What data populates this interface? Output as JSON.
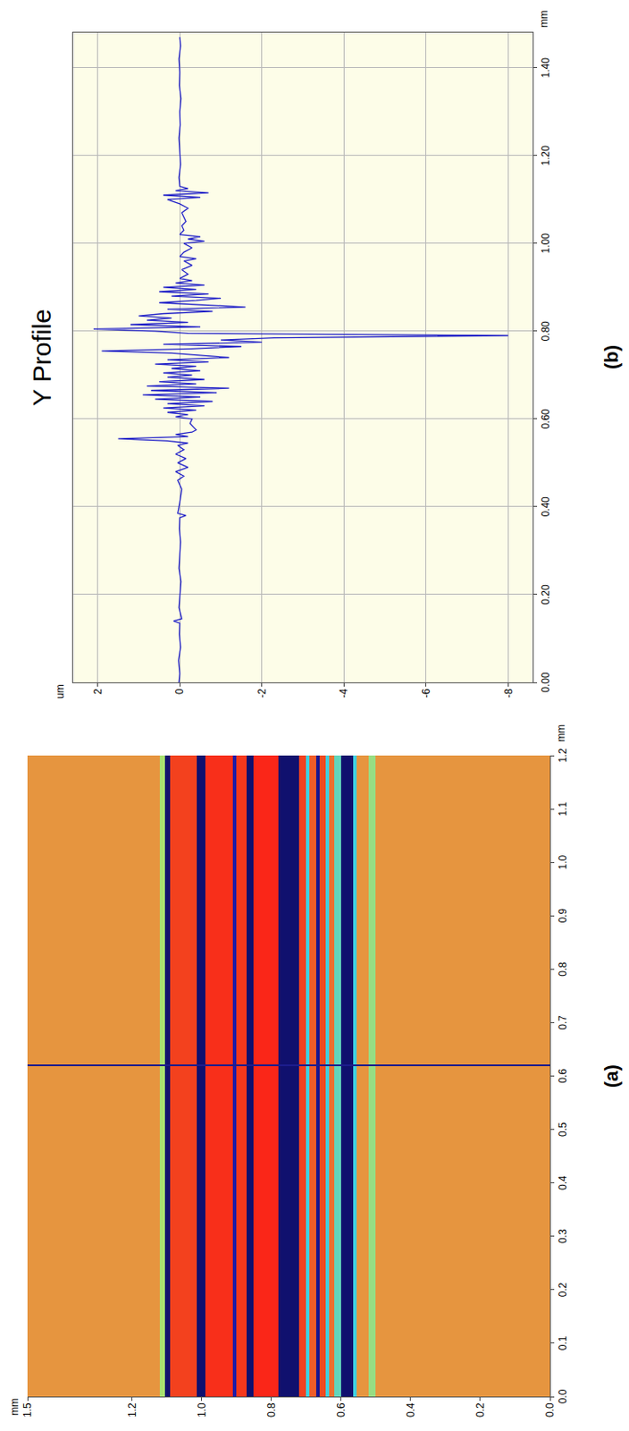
{
  "chart_data": [
    {
      "type": "heatmap",
      "label": "(a)",
      "xlabel": "mm",
      "ylabel": "mm",
      "x_edges": [
        0,
        1.2
      ],
      "y_edges": [
        0,
        0.5,
        0.52,
        0.555,
        0.565,
        0.6,
        0.62,
        0.635,
        0.645,
        0.66,
        0.67,
        0.69,
        0.7,
        0.72,
        0.78,
        0.85,
        0.87,
        0.9,
        0.91,
        0.99,
        1.015,
        1.09,
        1.105,
        1.12,
        1.5
      ],
      "z": [
        0,
        -0.35,
        0,
        -0.6,
        -1.5,
        -0.5,
        0.2,
        -0.6,
        0.4,
        -1.2,
        0.3,
        -0.6,
        0.5,
        -1.5,
        0.8,
        -1.5,
        0.6,
        -1.0,
        0.7,
        -1.5,
        0.5,
        -1.5,
        -0.3,
        0
      ],
      "zlim": [
        -1.5,
        1
      ],
      "cut_x": 0.62,
      "cut_color": "#1c1c8c",
      "xlim": [
        0,
        1.2
      ],
      "ylim": [
        0,
        1.5
      ],
      "xticks": [
        {
          "value": 0,
          "label": "0.0"
        },
        0.1,
        0.2,
        0.3,
        0.4,
        0.5,
        0.6,
        0.7,
        0.8,
        0.9,
        {
          "value": 1,
          "label": "1.0"
        },
        1.1,
        1.2
      ],
      "yticks": [
        {
          "value": 0,
          "label": "0.0"
        },
        0.2,
        0.4,
        0.6,
        0.8,
        {
          "value": 1,
          "label": "1.0"
        },
        1.2,
        1.5
      ],
      "grid": false
    },
    {
      "type": "line",
      "title": "Y Profile",
      "label": "(b)",
      "xlabel": "mm",
      "ylabel": "um",
      "color": "#2323c8",
      "x": [
        0,
        0.02,
        0.05,
        0.08,
        0.11,
        0.135,
        0.14,
        0.145,
        0.17,
        0.2,
        0.23,
        0.26,
        0.29,
        0.32,
        0.35,
        0.375,
        0.38,
        0.385,
        0.41,
        0.44,
        0.46,
        0.47,
        0.48,
        0.49,
        0.5,
        0.51,
        0.52,
        0.53,
        0.54,
        0.545,
        0.55,
        0.555,
        0.56,
        0.565,
        0.57,
        0.575,
        0.58,
        0.59,
        0.6,
        0.605,
        0.61,
        0.615,
        0.62,
        0.625,
        0.63,
        0.635,
        0.64,
        0.645,
        0.65,
        0.655,
        0.66,
        0.665,
        0.67,
        0.675,
        0.68,
        0.685,
        0.69,
        0.695,
        0.7,
        0.705,
        0.71,
        0.715,
        0.72,
        0.725,
        0.73,
        0.735,
        0.74,
        0.745,
        0.75,
        0.755,
        0.76,
        0.765,
        0.77,
        0.775,
        0.78,
        0.785,
        0.79,
        0.795,
        0.8,
        0.805,
        0.81,
        0.815,
        0.82,
        0.825,
        0.83,
        0.835,
        0.84,
        0.845,
        0.85,
        0.855,
        0.86,
        0.865,
        0.87,
        0.875,
        0.88,
        0.885,
        0.89,
        0.895,
        0.9,
        0.905,
        0.91,
        0.915,
        0.92,
        0.93,
        0.94,
        0.95,
        0.96,
        0.965,
        0.97,
        0.98,
        0.99,
        1.0,
        1.005,
        1.01,
        1.015,
        1.02,
        1.03,
        1.04,
        1.05,
        1.06,
        1.07,
        1.08,
        1.09,
        1.1,
        1.105,
        1.11,
        1.115,
        1.12,
        1.125,
        1.13,
        1.15,
        1.18,
        1.21,
        1.24,
        1.27,
        1.3,
        1.33,
        1.36,
        1.39,
        1.42,
        1.45,
        1.47
      ],
      "values": [
        0.02,
        0,
        0.03,
        -0.02,
        0.01,
        0,
        0.15,
        -0.05,
        0.02,
        0,
        -0.03,
        0.02,
        0,
        -0.02,
        0.01,
        0,
        -0.15,
        0.05,
        0,
        -0.05,
        0.05,
        -0.1,
        0.1,
        -0.2,
        0.05,
        -0.15,
        0.1,
        -0.1,
        0.05,
        -0.2,
        0.3,
        1.5,
        -0.2,
        0.1,
        -0.3,
        -0.4,
        -0.35,
        -0.25,
        -0.3,
        0.1,
        -0.2,
        0.3,
        -0.4,
        0.4,
        -0.6,
        0.3,
        -0.8,
        0.6,
        -0.5,
        0.9,
        -0.9,
        0.7,
        -1.2,
        0.8,
        -0.4,
        0.5,
        -0.6,
        0.3,
        -0.3,
        0.4,
        -0.5,
        0.2,
        -0.4,
        0.6,
        -0.7,
        0.3,
        -1.2,
        -0.5,
        0.2,
        1.9,
        -0.3,
        -1.5,
        0.4,
        -2.0,
        -1.0,
        -2.3,
        -8.0,
        -0.2,
        0.6,
        2.1,
        -0.5,
        1.2,
        -0.2,
        0.8,
        0.2,
        1.0,
        0.4,
        -0.8,
        0.3,
        -1.6,
        -0.6,
        0.5,
        -0.4,
        -1.0,
        0.2,
        -0.7,
        0.5,
        -0.4,
        0.4,
        -0.6,
        0.1,
        -0.3,
        0,
        -0.2,
        -0.05,
        -0.3,
        -0.1,
        -0.4,
        0,
        -0.1,
        -0.3,
        -0.1,
        -0.6,
        -0.2,
        -0.5,
        0,
        -0.1,
        -0.05,
        -0.15,
        -0.1,
        -0.05,
        -0.2,
        0,
        0.3,
        -0.5,
        0.4,
        -0.7,
        0.1,
        -0.2,
        0,
        0.02,
        -0.02,
        0,
        0.02,
        -0.01,
        0,
        -0.03,
        0.01,
        0,
        0.02,
        -0.02,
        0
      ],
      "xlim": [
        0,
        1.48
      ],
      "ylim": [
        -8.6,
        2.6
      ],
      "xticks": [
        {
          "value": 0,
          "label": "0.00"
        },
        {
          "value": 0.2,
          "label": "0.20"
        },
        {
          "value": 0.4,
          "label": "0.40"
        },
        {
          "value": 0.6,
          "label": "0.60"
        },
        {
          "value": 0.8,
          "label": "0.80"
        },
        {
          "value": 1,
          "label": "1.00"
        },
        {
          "value": 1.2,
          "label": "1.20"
        },
        {
          "value": 1.4,
          "label": "1.40"
        }
      ],
      "yticks": [
        2,
        0,
        -2,
        -4,
        -6,
        -8
      ],
      "grid": true
    }
  ]
}
